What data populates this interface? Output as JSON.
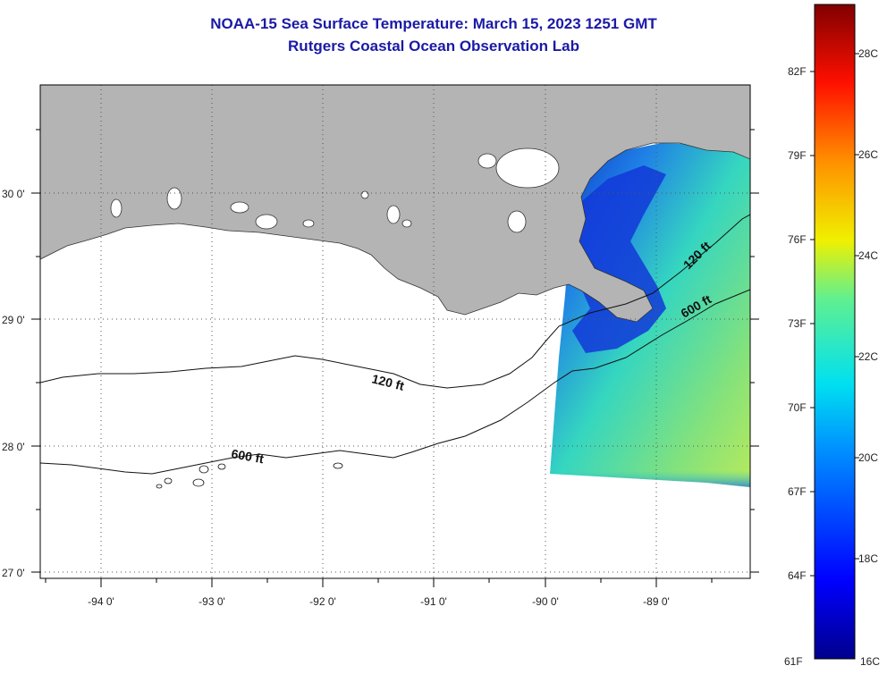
{
  "title": "NOAA-15 Sea Surface Temperature:  March 15, 2023 1251 GMT",
  "subtitle": "Rutgers Coastal Ocean Observation Lab",
  "map": {
    "lon_labels": [
      "-94 0'",
      "-93 0'",
      "-92 0'",
      "-91 0'",
      "-90 0'",
      "-89 0'"
    ],
    "lat_labels": [
      "30 0'",
      "29 0'",
      "28 0'",
      "27 0'"
    ],
    "contours": [
      {
        "id": "c120",
        "label": "120 ft"
      },
      {
        "id": "c600",
        "label": "600 ft"
      }
    ]
  },
  "colorbar": {
    "fahrenheit": [
      "82F",
      "79F",
      "76F",
      "73F",
      "70F",
      "67F",
      "64F",
      "61F"
    ],
    "celsius": [
      "28C",
      "26C",
      "24C",
      "22C",
      "20C",
      "18C",
      "16C"
    ]
  },
  "colors": {
    "land": "#b4b4b4",
    "title": "#1a1aa6"
  }
}
